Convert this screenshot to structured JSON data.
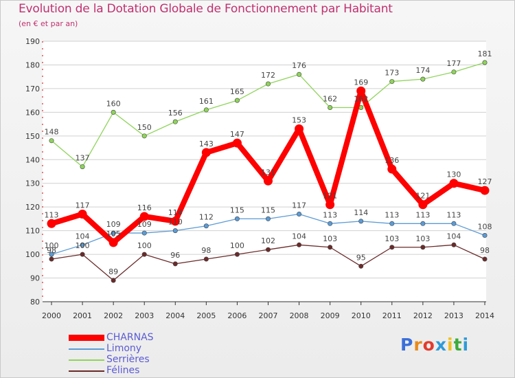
{
  "page": {
    "title": "Evolution de la Dotation Globale de Fonctionnement par Habitant",
    "subtitle": "(en € et par an)",
    "logo_text": "Proxiti"
  },
  "colors": {
    "title": "#c0306f",
    "charnas": "#ff0000",
    "limony": "#5b9bd5",
    "serrieres": "#8fd45a",
    "felines": "#6b2a2a",
    "grid": "#d0d0d0"
  },
  "chart_data": {
    "type": "line",
    "title": "Evolution de la Dotation Globale de Fonctionnement par Habitant",
    "subtitle": "(en € et par an)",
    "xlabel": "",
    "ylabel": "",
    "x": [
      "2000",
      "2001",
      "2002",
      "2003",
      "2004",
      "2005",
      "2006",
      "2007",
      "2008",
      "2009",
      "2010",
      "2011",
      "2012",
      "2013",
      "2014"
    ],
    "ylim": [
      80,
      190
    ],
    "yticks": [
      80,
      90,
      100,
      110,
      120,
      130,
      140,
      150,
      160,
      170,
      180,
      190
    ],
    "grid": "horizontal",
    "legend_position": "bottom-left",
    "series": [
      {
        "name": "CHARNAS",
        "color": "#ff0000",
        "values": [
          113,
          117,
          105,
          116,
          114,
          143,
          147,
          131,
          153,
          121,
          169,
          136,
          121,
          130,
          127
        ]
      },
      {
        "name": "Limony",
        "color": "#5b9bd5",
        "values": [
          100,
          104,
          109,
          109,
          110,
          112,
          115,
          115,
          117,
          113,
          114,
          113,
          113,
          113,
          108
        ]
      },
      {
        "name": "Serrières",
        "color": "#8fd45a",
        "values": [
          148,
          137,
          160,
          150,
          156,
          161,
          165,
          172,
          176,
          162,
          162,
          173,
          174,
          177,
          181
        ]
      },
      {
        "name": "Félines",
        "color": "#6b2a2a",
        "values": [
          98,
          100,
          89,
          100,
          96,
          98,
          100,
          102,
          104,
          103,
          95,
          103,
          103,
          104,
          98
        ]
      }
    ]
  }
}
